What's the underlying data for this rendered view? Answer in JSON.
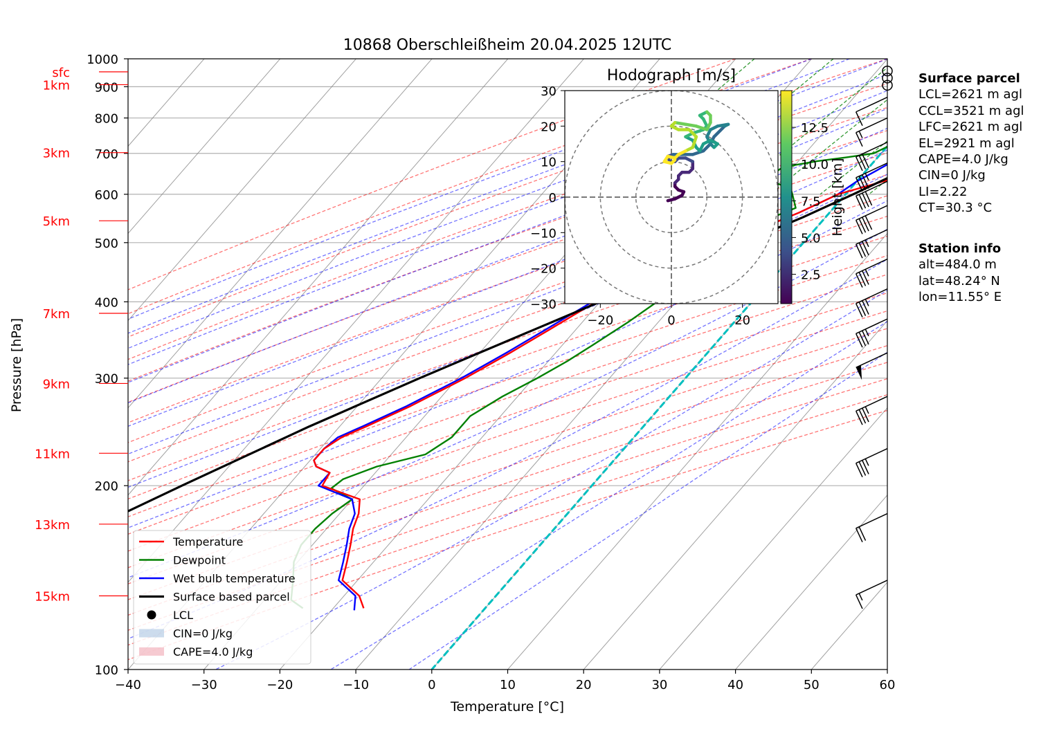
{
  "chart_data": {
    "type": "line",
    "title": "10868 Oberschleißheim 20.04.2025 12UTC",
    "xlabel": "Temperature [°C]",
    "ylabel": "Pressure [hPa]",
    "xlim": [
      -40,
      60
    ],
    "ylim": [
      1000,
      100
    ],
    "y_scale": "log",
    "x_ticks": [
      -40,
      -30,
      -20,
      -10,
      0,
      10,
      20,
      30,
      40,
      50,
      60
    ],
    "y_ticks": [
      100,
      200,
      300,
      400,
      500,
      600,
      700,
      800,
      900,
      1000
    ],
    "height_labels": [
      {
        "label": "15km",
        "p": 132
      },
      {
        "label": "13km",
        "p": 173
      },
      {
        "label": "11km",
        "p": 226
      },
      {
        "label": "9km",
        "p": 294
      },
      {
        "label": "7km",
        "p": 383
      },
      {
        "label": "5km",
        "p": 543
      },
      {
        "label": "3km",
        "p": 702
      },
      {
        "label": "1km",
        "p": 907
      },
      {
        "label": "sfc",
        "p": 952
      }
    ],
    "series": [
      {
        "name": "Temperature",
        "color": "#ff0000",
        "points": [
          [
            952,
            24.0
          ],
          [
            930,
            20.5
          ],
          [
            900,
            18.2
          ],
          [
            850,
            14.5
          ],
          [
            800,
            10.5
          ],
          [
            760,
            8.0
          ],
          [
            725,
            6.2
          ],
          [
            700,
            7.0
          ],
          [
            672,
            12.0
          ],
          [
            668,
            11.8
          ],
          [
            655,
            7.5
          ],
          [
            630,
            3.5
          ],
          [
            600,
            -1.0
          ],
          [
            560,
            -4.0
          ],
          [
            530,
            -7.0
          ],
          [
            500,
            -10.0
          ],
          [
            450,
            -15.0
          ],
          [
            400,
            -20.5
          ],
          [
            380,
            -22.0
          ],
          [
            360,
            -23.5
          ],
          [
            330,
            -26.0
          ],
          [
            300,
            -29.0
          ],
          [
            270,
            -33.0
          ],
          [
            250,
            -36.5
          ],
          [
            240,
            -38.5
          ],
          [
            230,
            -39.5
          ],
          [
            220,
            -39.5
          ],
          [
            215,
            -38.5
          ],
          [
            210,
            -36.0
          ],
          [
            200,
            -35.5
          ],
          [
            190,
            -29.0
          ],
          [
            180,
            -27.5
          ],
          [
            170,
            -26.5
          ],
          [
            160,
            -25.0
          ],
          [
            150,
            -23.5
          ],
          [
            140,
            -22.0
          ],
          [
            132,
            -18.0
          ],
          [
            126,
            -16.0
          ]
        ]
      },
      {
        "name": "Dewpoint",
        "color": "#008000",
        "points": [
          [
            955,
            -0.3
          ],
          [
            945,
            -0.3
          ],
          [
            930,
            -0.5
          ],
          [
            900,
            -0.3
          ],
          [
            850,
            0.5
          ],
          [
            800,
            0.0
          ],
          [
            760,
            0.3
          ],
          [
            725,
            0.5
          ],
          [
            700,
            -1.0
          ],
          [
            690,
            -4.0
          ],
          [
            680,
            -7.5
          ],
          [
            670,
            -10.0
          ],
          [
            660,
            -11.5
          ],
          [
            645,
            -12.0
          ],
          [
            630,
            -11.5
          ],
          [
            615,
            -8.0
          ],
          [
            600,
            -7.0
          ],
          [
            570,
            -5.0
          ],
          [
            540,
            -8.0
          ],
          [
            500,
            -10.0
          ],
          [
            460,
            -9.5
          ],
          [
            440,
            -11.0
          ],
          [
            400,
            -12.5
          ],
          [
            370,
            -14.0
          ],
          [
            340,
            -16.0
          ],
          [
            320,
            -17.5
          ],
          [
            300,
            -19.5
          ],
          [
            280,
            -22.0
          ],
          [
            260,
            -24.0
          ],
          [
            240,
            -24.0
          ],
          [
            225,
            -25.5
          ],
          [
            215,
            -30.5
          ],
          [
            205,
            -33.5
          ],
          [
            198,
            -34.0
          ],
          [
            190,
            -30.0
          ],
          [
            180,
            -31.0
          ],
          [
            170,
            -31.5
          ],
          [
            160,
            -31.5
          ],
          [
            150,
            -30.5
          ],
          [
            140,
            -28.5
          ],
          [
            130,
            -26.5
          ],
          [
            126,
            -24.0
          ]
        ]
      },
      {
        "name": "Wet bulb temperature",
        "color": "#0000ff",
        "points": [
          [
            955,
            12.5
          ],
          [
            940,
            11.5
          ],
          [
            900,
            10.2
          ],
          [
            850,
            8.5
          ],
          [
            800,
            6.0
          ],
          [
            760,
            4.5
          ],
          [
            725,
            3.5
          ],
          [
            700,
            3.0
          ],
          [
            680,
            2.5
          ],
          [
            655,
            1.3
          ],
          [
            630,
            0.0
          ],
          [
            600,
            -1.0
          ],
          [
            560,
            -4.0
          ],
          [
            530,
            -7.0
          ],
          [
            500,
            -10.0
          ],
          [
            450,
            -15.0
          ],
          [
            400,
            -21.0
          ],
          [
            380,
            -22.5
          ],
          [
            360,
            -24.0
          ],
          [
            330,
            -26.5
          ],
          [
            300,
            -29.5
          ],
          [
            270,
            -33.5
          ],
          [
            250,
            -37.0
          ],
          [
            240,
            -39.0
          ],
          [
            230,
            -39.5
          ],
          [
            220,
            -39.5
          ],
          [
            215,
            -38.5
          ],
          [
            210,
            -36.0
          ],
          [
            200,
            -36.0
          ],
          [
            190,
            -30.0
          ],
          [
            180,
            -28.0
          ],
          [
            170,
            -27.0
          ],
          [
            160,
            -25.5
          ],
          [
            150,
            -24.0
          ],
          [
            140,
            -22.5
          ],
          [
            132,
            -18.5
          ],
          [
            125,
            -17.0
          ]
        ]
      },
      {
        "name": "Surface based parcel",
        "color": "#000000",
        "points": [
          [
            952,
            24.0
          ],
          [
            900,
            21.5
          ],
          [
            850,
            18.0
          ],
          [
            800,
            14.5
          ],
          [
            750,
            11.0
          ],
          [
            706,
            7.6
          ],
          [
            650,
            4.5
          ],
          [
            600,
            1.0
          ],
          [
            550,
            -3.0
          ],
          [
            500,
            -8.0
          ],
          [
            450,
            -13.5
          ],
          [
            400,
            -20.0
          ],
          [
            350,
            -27.0
          ],
          [
            300,
            -35.0
          ],
          [
            250,
            -44.0
          ],
          [
            200,
            -54.0
          ],
          [
            170,
            -61.0
          ],
          [
            150,
            -66.0
          ],
          [
            132,
            -71.0
          ]
        ]
      }
    ],
    "lcl": {
      "name": "LCL",
      "p": 706,
      "t": 7.6
    },
    "legend": [
      "Temperature",
      "Dewpoint",
      "Wet bulb temperature",
      "Surface based parcel",
      "LCL",
      "CIN=0 J/kg",
      "CAPE=4.0 J/kg"
    ],
    "legend_position": "lower-left",
    "hodograph": {
      "title": "Hodograph [m/s]",
      "colorbar_label": "Height [km]",
      "colorbar_ticks": [
        "2.5",
        "5.0",
        "7.5",
        "10.0",
        "12.5"
      ],
      "colorbar_range": [
        0.5,
        15
      ],
      "x_ticks": [
        "−20",
        "0",
        "20"
      ],
      "y_ticks": [
        "30",
        "20",
        "10",
        "0",
        "−10",
        "−20",
        "−30"
      ],
      "range": [
        -30,
        30
      ],
      "points": [
        [
          -1,
          -1
        ],
        [
          1,
          -0.5
        ],
        [
          3,
          0.5
        ],
        [
          3.5,
          1.5
        ],
        [
          2,
          2
        ],
        [
          1,
          3
        ],
        [
          1,
          4
        ],
        [
          2,
          5
        ],
        [
          2,
          6
        ],
        [
          3,
          7
        ],
        [
          5,
          7
        ],
        [
          6,
          8
        ],
        [
          6,
          10
        ],
        [
          4,
          11
        ],
        [
          2,
          11
        ],
        [
          1,
          10
        ],
        [
          -0.5,
          10
        ],
        [
          -1,
          11.5
        ],
        [
          0.5,
          12
        ],
        [
          3,
          12
        ],
        [
          6,
          12
        ],
        [
          9,
          13
        ],
        [
          11,
          15
        ],
        [
          12,
          17
        ],
        [
          15,
          20
        ],
        [
          16,
          20.5
        ],
        [
          13,
          20
        ],
        [
          11,
          19
        ],
        [
          10,
          17
        ],
        [
          11,
          15
        ],
        [
          12,
          14
        ],
        [
          13,
          15
        ],
        [
          11,
          16
        ],
        [
          9,
          15
        ],
        [
          8,
          13
        ],
        [
          7,
          14
        ],
        [
          6,
          16
        ],
        [
          4,
          17
        ],
        [
          6,
          18
        ],
        [
          9,
          19
        ],
        [
          10,
          20
        ],
        [
          9,
          22
        ],
        [
          8,
          23
        ],
        [
          10,
          24
        ],
        [
          11,
          23
        ],
        [
          11,
          21
        ],
        [
          10,
          19
        ],
        [
          7,
          20
        ],
        [
          4,
          20.5
        ],
        [
          1,
          21
        ],
        [
          0,
          20
        ],
        [
          2,
          19
        ],
        [
          5,
          19
        ],
        [
          7,
          17
        ],
        [
          6,
          14
        ],
        [
          4,
          13
        ],
        [
          2,
          12
        ],
        [
          1,
          11
        ],
        [
          -1,
          11.5
        ],
        [
          -2,
          10
        ],
        [
          0,
          9.5
        ],
        [
          1,
          10.5
        ]
      ]
    },
    "wind_barbs": [
      {
        "p": 955,
        "kt": 0
      },
      {
        "p": 930,
        "kt": 0
      },
      {
        "p": 905,
        "kt": 0
      },
      {
        "p": 865,
        "kt": 10
      },
      {
        "p": 800,
        "kt": 15
      },
      {
        "p": 730,
        "kt": 30
      },
      {
        "p": 675,
        "kt": 35
      },
      {
        "p": 630,
        "kt": 40
      },
      {
        "p": 575,
        "kt": 40
      },
      {
        "p": 525,
        "kt": 35
      },
      {
        "p": 470,
        "kt": 35
      },
      {
        "p": 420,
        "kt": 35
      },
      {
        "p": 375,
        "kt": 35
      },
      {
        "p": 330,
        "kt": 50
      },
      {
        "p": 280,
        "kt": 35
      },
      {
        "p": 230,
        "kt": 35
      },
      {
        "p": 180,
        "kt": 20
      },
      {
        "p": 140,
        "kt": 15
      }
    ],
    "colors": {
      "dry_adiabat": "#ff0000",
      "moist_adiabat": "#0000ff",
      "mixing_ratio": "#008000",
      "isotherm": "#808080",
      "zero_isotherm": "#00bfbf",
      "cape": "#f2b3bd",
      "cin": "#b7cde5"
    }
  },
  "surface_parcel": {
    "heading": "Surface parcel",
    "lines": [
      "LCL=2621 m agl",
      "CCL=3521 m agl",
      "LFC=2621 m agl",
      "EL=2921 m agl",
      "CAPE=4.0 J/kg",
      "CIN=0 J/kg",
      "LI=2.22",
      "CT=30.3 °C"
    ]
  },
  "station_info": {
    "heading": "Station info",
    "lines": [
      "alt=484.0 m",
      "lat=48.24° N",
      "lon=11.55° E"
    ]
  }
}
